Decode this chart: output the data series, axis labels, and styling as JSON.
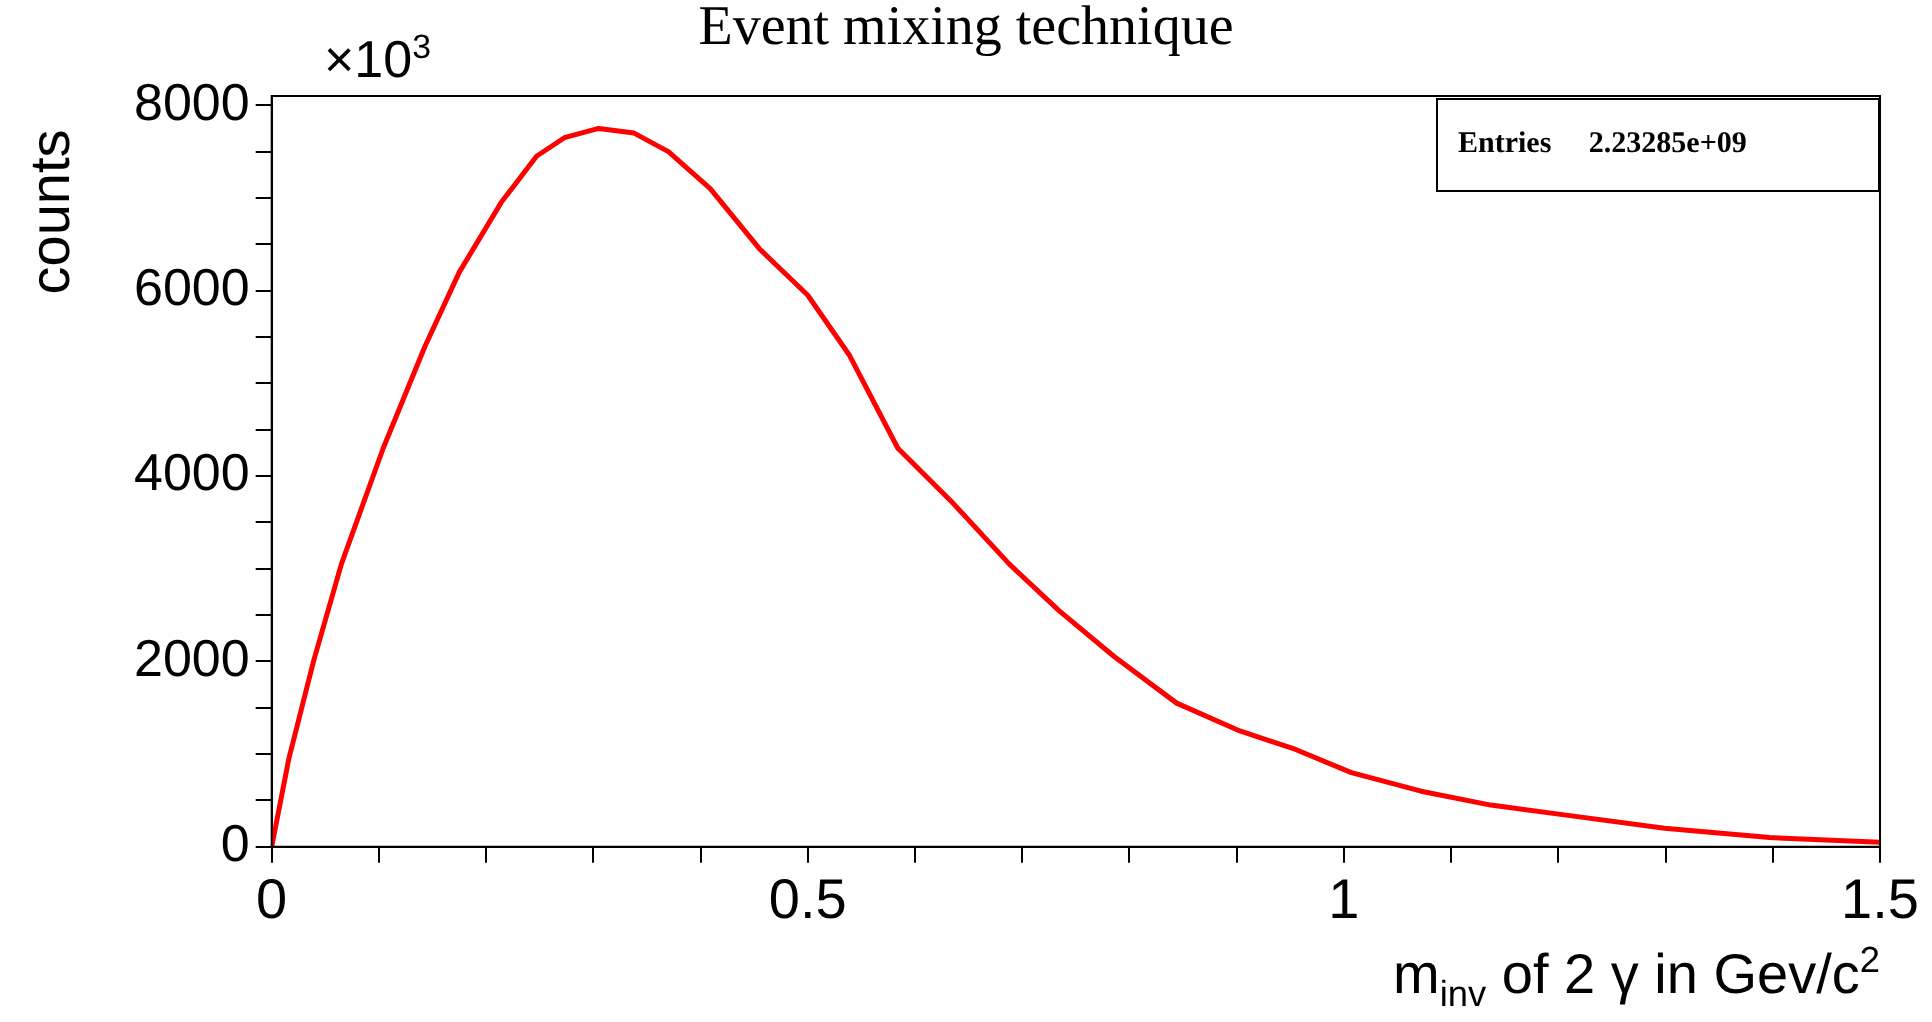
{
  "chart_data": {
    "type": "line",
    "title": "Event mixing technique",
    "xlabel": "m$_{inv}$ of 2 γ in Gev/c$^{2}$",
    "ylabel": "counts",
    "annotations": [
      "×10$^{3}$",
      "Entries     2.23285e+09"
    ],
    "x": [
      0,
      0.016,
      0.039,
      0.065,
      0.104,
      0.143,
      0.175,
      0.214,
      0.247,
      0.273,
      0.305,
      0.338,
      0.37,
      0.409,
      0.455,
      0.5,
      0.539,
      0.584,
      0.636,
      0.688,
      0.734,
      0.786,
      0.844,
      0.903,
      0.955,
      1.007,
      1.072,
      1.137,
      1.202,
      1.299,
      1.397,
      1.5
    ],
    "series": [
      {
        "color": "#ff0000",
        "values": [
          0,
          950,
          2000,
          3050,
          4300,
          5400,
          6200,
          6950,
          7450,
          7650,
          7750,
          7700,
          7500,
          7100,
          6450,
          5950,
          5300,
          4300,
          3700,
          3050,
          2550,
          2050,
          1550,
          1250,
          1050,
          800,
          600,
          450,
          350,
          200,
          100,
          50
        ]
      }
    ],
    "xlim": [
      0,
      1.5
    ],
    "ylim": [
      0,
      8100
    ],
    "xticks": [
      0,
      {
        "value": 0.1,
        "label": null
      },
      {
        "value": 0.2,
        "label": null
      },
      {
        "value": 0.3,
        "label": null
      },
      {
        "value": 0.4,
        "label": null
      },
      0.5,
      {
        "value": 0.6,
        "label": null
      },
      {
        "value": 0.7,
        "label": null
      },
      {
        "value": 0.8,
        "label": null
      },
      {
        "value": 0.9,
        "label": null
      },
      1,
      {
        "value": 1.1,
        "label": null
      },
      {
        "value": 1.2,
        "label": null
      },
      {
        "value": 1.3,
        "label": null
      },
      {
        "value": 1.4,
        "label": null
      },
      1.5
    ],
    "yticks": [
      0,
      {
        "value": 500,
        "label": null
      },
      {
        "value": 1000,
        "label": null
      },
      {
        "value": 1500,
        "label": null
      },
      2000,
      {
        "value": 2500,
        "label": null
      },
      {
        "value": 3000,
        "label": null
      },
      {
        "value": 3500,
        "label": null
      },
      4000,
      {
        "value": 4500,
        "label": null
      },
      {
        "value": 5000,
        "label": null
      },
      {
        "value": 5500,
        "label": null
      },
      6000,
      {
        "value": 6500,
        "label": null
      },
      {
        "value": 7000,
        "label": null
      },
      {
        "value": 7500,
        "label": null
      },
      8000
    ],
    "grid": false,
    "legend": false,
    "marker": "none",
    "line_style": "solid"
  }
}
